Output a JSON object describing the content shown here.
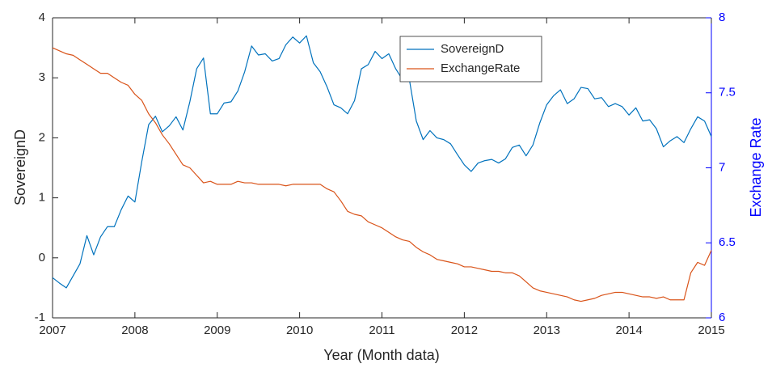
{
  "chart_data": {
    "type": "line",
    "x_label": "Year (Month data)",
    "y_label": "SovereignD",
    "y2_label": "Exchange Rate",
    "xlim": [
      2007,
      2015
    ],
    "xticks": [
      2007,
      2008,
      2009,
      2010,
      2011,
      2012,
      2013,
      2014,
      2015
    ],
    "ylim": [
      -1,
      4
    ],
    "yticks": [
      -1,
      0,
      1,
      2,
      3,
      4
    ],
    "y2lim": [
      6,
      8
    ],
    "y2ticks": [
      6,
      6.5,
      7,
      7.5,
      8
    ],
    "y2_color": "#0000ff",
    "legend": "north",
    "x": [
      2007,
      2007.083,
      2007.167,
      2007.25,
      2007.333,
      2007.417,
      2007.5,
      2007.583,
      2007.667,
      2007.75,
      2007.833,
      2007.917,
      2008,
      2008.083,
      2008.167,
      2008.25,
      2008.333,
      2008.417,
      2008.5,
      2008.583,
      2008.667,
      2008.75,
      2008.833,
      2008.917,
      2009,
      2009.083,
      2009.167,
      2009.25,
      2009.333,
      2009.417,
      2009.5,
      2009.583,
      2009.667,
      2009.75,
      2009.833,
      2009.917,
      2010,
      2010.083,
      2010.167,
      2010.25,
      2010.333,
      2010.417,
      2010.5,
      2010.583,
      2010.667,
      2010.75,
      2010.833,
      2010.917,
      2011,
      2011.083,
      2011.167,
      2011.25,
      2011.333,
      2011.417,
      2011.5,
      2011.583,
      2011.667,
      2011.75,
      2011.833,
      2011.917,
      2012,
      2012.083,
      2012.167,
      2012.25,
      2012.333,
      2012.417,
      2012.5,
      2012.583,
      2012.667,
      2012.75,
      2012.833,
      2012.917,
      2013,
      2013.083,
      2013.167,
      2013.25,
      2013.333,
      2013.417,
      2013.5,
      2013.583,
      2013.667,
      2013.75,
      2013.833,
      2013.917,
      2014,
      2014.083,
      2014.167,
      2014.25,
      2014.333,
      2014.417,
      2014.5,
      2014.583,
      2014.667,
      2014.75,
      2014.833,
      2014.917,
      2015
    ],
    "series": [
      {
        "name": "SovereignD",
        "color": "#0072bd",
        "axis": "y",
        "values": [
          -0.33,
          -0.42,
          -0.5,
          -0.3,
          -0.1,
          0.37,
          0.05,
          0.35,
          0.52,
          0.52,
          0.8,
          1.03,
          0.93,
          1.6,
          2.22,
          2.36,
          2.1,
          2.2,
          2.35,
          2.13,
          2.6,
          3.15,
          3.33,
          2.4,
          2.4,
          2.58,
          2.6,
          2.78,
          3.1,
          3.53,
          3.38,
          3.4,
          3.28,
          3.32,
          3.55,
          3.68,
          3.58,
          3.7,
          3.25,
          3.1,
          2.85,
          2.55,
          2.5,
          2.4,
          2.62,
          3.15,
          3.22,
          3.44,
          3.32,
          3.4,
          3.15,
          2.97,
          2.97,
          2.28,
          1.97,
          2.12,
          2.0,
          1.97,
          1.9,
          1.72,
          1.55,
          1.44,
          1.58,
          1.62,
          1.64,
          1.58,
          1.65,
          1.84,
          1.88,
          1.7,
          1.88,
          2.25,
          2.55,
          2.7,
          2.8,
          2.57,
          2.65,
          2.84,
          2.82,
          2.65,
          2.67,
          2.52,
          2.57,
          2.52,
          2.38,
          2.5,
          2.28,
          2.3,
          2.15,
          1.85,
          1.95,
          2.02,
          1.92,
          2.15,
          2.35,
          2.28,
          2.02
        ]
      },
      {
        "name": "ExchangeRate",
        "color": "#d95319",
        "axis": "y2",
        "values": [
          7.8,
          7.78,
          7.76,
          7.75,
          7.72,
          7.69,
          7.66,
          7.63,
          7.63,
          7.6,
          7.57,
          7.55,
          7.49,
          7.45,
          7.36,
          7.3,
          7.22,
          7.16,
          7.09,
          7.02,
          7.0,
          6.95,
          6.9,
          6.91,
          6.89,
          6.89,
          6.89,
          6.91,
          6.9,
          6.9,
          6.89,
          6.89,
          6.89,
          6.89,
          6.88,
          6.89,
          6.89,
          6.89,
          6.89,
          6.89,
          6.86,
          6.84,
          6.78,
          6.71,
          6.69,
          6.68,
          6.64,
          6.62,
          6.6,
          6.57,
          6.54,
          6.52,
          6.51,
          6.47,
          6.44,
          6.42,
          6.39,
          6.38,
          6.37,
          6.36,
          6.34,
          6.34,
          6.33,
          6.32,
          6.31,
          6.31,
          6.3,
          6.3,
          6.28,
          6.24,
          6.2,
          6.18,
          6.17,
          6.16,
          6.15,
          6.14,
          6.12,
          6.11,
          6.12,
          6.13,
          6.15,
          6.16,
          6.17,
          6.17,
          6.16,
          6.15,
          6.14,
          6.14,
          6.13,
          6.14,
          6.12,
          6.12,
          6.12,
          6.3,
          6.37,
          6.35,
          6.45
        ]
      }
    ]
  }
}
